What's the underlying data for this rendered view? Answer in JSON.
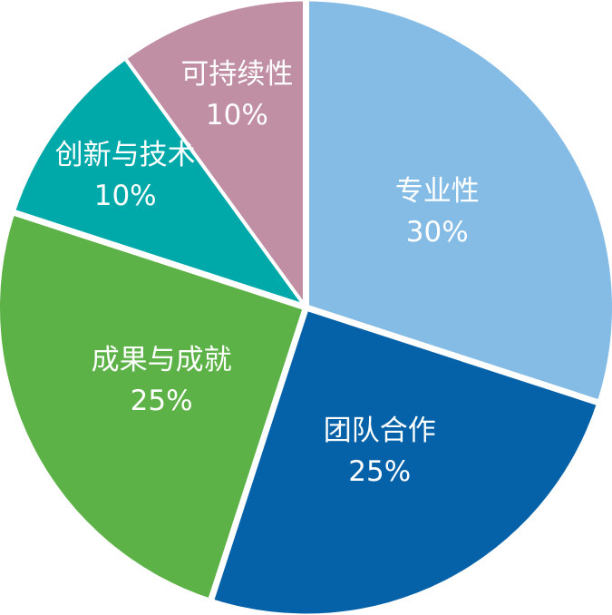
{
  "chart_data": {
    "type": "pie",
    "title": "",
    "legend_position": "none",
    "labels_position": "inside",
    "start_angle_deg": 0,
    "direction": "clockwise",
    "separator_color": "#FFFFFF",
    "label_color": "#FFFFFF",
    "background": "#FFFFFF",
    "categories": [
      "专业性",
      "团队合作",
      "成果与成就",
      "创新与技术",
      "可持续性"
    ],
    "values": [
      30,
      25,
      25,
      10,
      10
    ],
    "slices": [
      {
        "label": "专业性",
        "percent": 30,
        "value_label": "30%",
        "color": "#85BCE6"
      },
      {
        "label": "团队合作",
        "percent": 25,
        "value_label": "25%",
        "color": "#0561A8"
      },
      {
        "label": "成果与成就",
        "percent": 25,
        "value_label": "25%",
        "color": "#5CB246"
      },
      {
        "label": "创新与技术",
        "percent": 10,
        "value_label": "10%",
        "color": "#00A9A9"
      },
      {
        "label": "可持续性",
        "percent": 10,
        "value_label": "10%",
        "color": "#C18FA4"
      }
    ]
  }
}
